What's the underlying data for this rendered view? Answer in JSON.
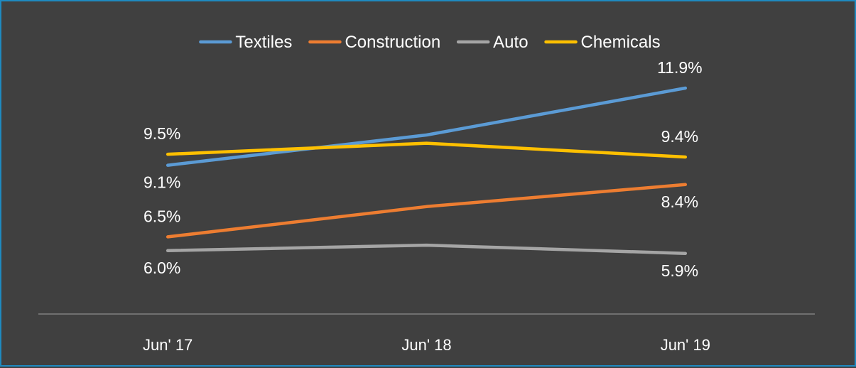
{
  "chart_data": {
    "type": "line",
    "categories": [
      "Jun' 17",
      "Jun' 18",
      "Jun' 19"
    ],
    "series": [
      {
        "name": "Textiles",
        "color": "#5b9bd5",
        "values": [
          9.1,
          10.2,
          11.9
        ],
        "labels": [
          "9.1%",
          "",
          "11.9%"
        ]
      },
      {
        "name": "Construction",
        "color": "#ed7d31",
        "values": [
          6.5,
          7.6,
          8.4
        ],
        "labels": [
          "6.5%",
          "",
          "8.4%"
        ]
      },
      {
        "name": "Auto",
        "color": "#a5a5a5",
        "values": [
          6.0,
          6.2,
          5.9
        ],
        "labels": [
          "6.0%",
          "",
          "5.9%"
        ]
      },
      {
        "name": "Chemicals",
        "color": "#ffc000",
        "values": [
          9.5,
          9.9,
          9.4
        ],
        "labels": [
          "9.5%",
          "",
          "9.4%"
        ]
      }
    ],
    "ylim": [
      3.7,
      13.5
    ],
    "grid": false,
    "legend": "top-center",
    "background": "#404040",
    "border_color": "#1f8ac0"
  }
}
